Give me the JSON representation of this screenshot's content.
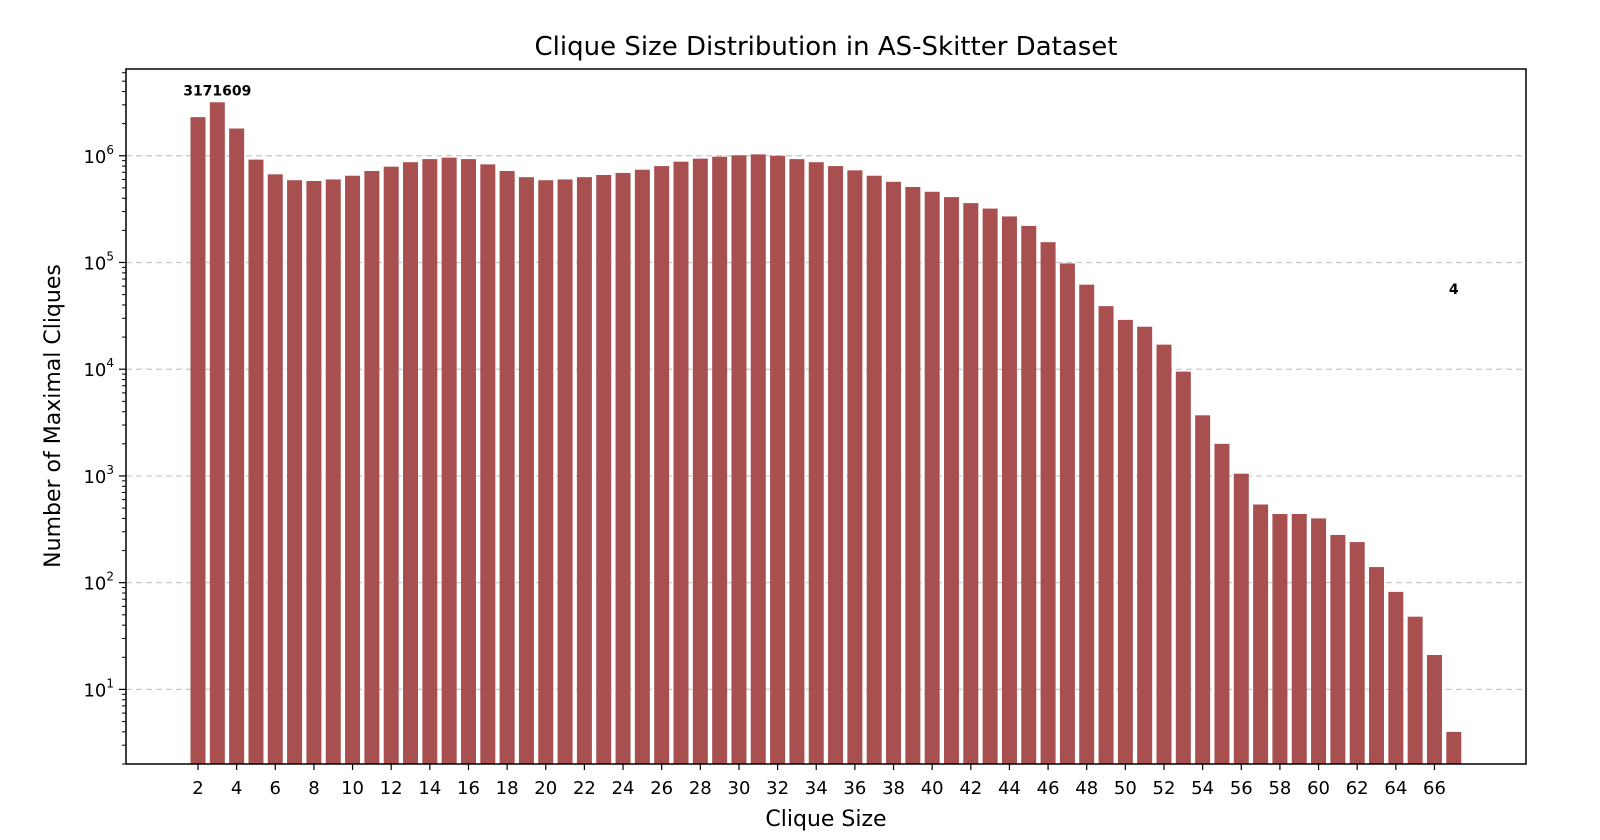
{
  "chart_data": {
    "type": "bar",
    "title": "Clique Size Distribution in AS-Skitter Dataset",
    "xlabel": "Clique Size",
    "ylabel": "Number of Maximal Cliques",
    "yscale": "log",
    "ylim": [
      2.0,
      6500000
    ],
    "grid": "y-dashed",
    "bar_color": "#a84f4f",
    "categories": [
      2,
      3,
      4,
      5,
      6,
      7,
      8,
      9,
      10,
      11,
      12,
      13,
      14,
      15,
      16,
      17,
      18,
      19,
      20,
      21,
      22,
      23,
      24,
      25,
      26,
      27,
      28,
      29,
      30,
      31,
      32,
      33,
      34,
      35,
      36,
      37,
      38,
      39,
      40,
      41,
      42,
      43,
      44,
      45,
      46,
      47,
      48,
      49,
      50,
      51,
      52,
      53,
      54,
      55,
      56,
      57,
      58,
      59,
      60,
      61,
      62,
      63,
      64,
      65,
      66,
      67
    ],
    "values": [
      2300000,
      3171609,
      1800000,
      920000,
      670000,
      590000,
      580000,
      600000,
      650000,
      720000,
      790000,
      870000,
      930000,
      960000,
      930000,
      830000,
      720000,
      630000,
      590000,
      600000,
      630000,
      660000,
      690000,
      740000,
      800000,
      880000,
      940000,
      980000,
      1010000,
      1030000,
      1000000,
      930000,
      870000,
      800000,
      730000,
      650000,
      570000,
      510000,
      460000,
      410000,
      360000,
      320000,
      270000,
      220000,
      155000,
      98000,
      62000,
      39000,
      29000,
      25000,
      17000,
      9500,
      3700,
      2000,
      1050,
      540,
      440,
      440,
      400,
      280,
      240,
      140,
      82,
      48,
      21,
      4
    ],
    "xticks": [
      2,
      4,
      6,
      8,
      10,
      12,
      14,
      16,
      18,
      20,
      22,
      24,
      26,
      28,
      30,
      32,
      34,
      36,
      38,
      40,
      42,
      44,
      46,
      48,
      50,
      52,
      54,
      56,
      58,
      60,
      62,
      64,
      66
    ],
    "yticks": [
      {
        "value": 10,
        "base": "10",
        "exp": "1"
      },
      {
        "value": 100,
        "base": "10",
        "exp": "2"
      },
      {
        "value": 1000,
        "base": "10",
        "exp": "3"
      },
      {
        "value": 10000,
        "base": "10",
        "exp": "4"
      },
      {
        "value": 100000,
        "base": "10",
        "exp": "5"
      },
      {
        "value": 1000000,
        "base": "10",
        "exp": "6"
      }
    ],
    "annotations": [
      {
        "category": 3,
        "value": 3171609,
        "text": "3171609"
      },
      {
        "category": 67,
        "value": 4,
        "text": "4"
      }
    ]
  }
}
